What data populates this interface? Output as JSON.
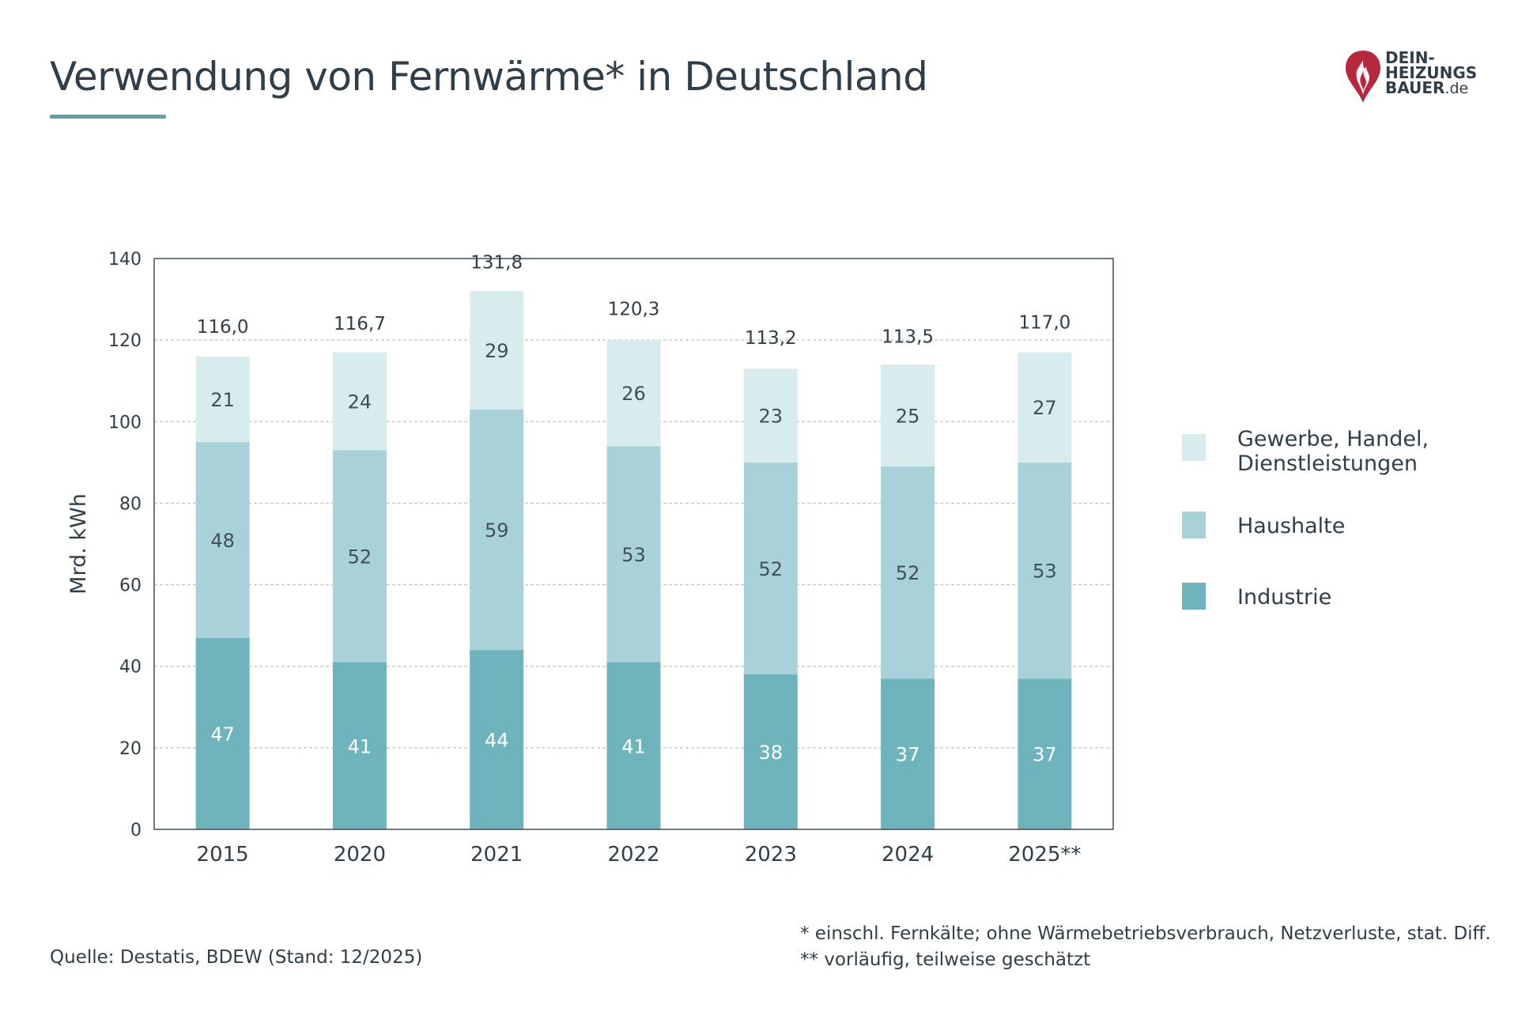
{
  "title": "Verwendung von Fernwärme* in Deutschland",
  "logo": {
    "line1": "DEIN-",
    "line2": "HEIZUNGS",
    "line3": "BAUER",
    "line3_suffix": ".de",
    "color_flame": "#b5283d"
  },
  "chart_data": {
    "type": "bar",
    "stacked": true,
    "categories": [
      "2015",
      "2020",
      "2021",
      "2022",
      "2023",
      "2024",
      "2025**"
    ],
    "series": [
      {
        "name": "Industrie",
        "values": [
          47,
          41,
          44,
          41,
          38,
          37,
          37
        ],
        "color": "#6fb4bd"
      },
      {
        "name": "Haushalte",
        "values": [
          48,
          52,
          59,
          53,
          52,
          52,
          53
        ],
        "color": "#a9d2d8"
      },
      {
        "name": "Gewerbe, Handel, Dienstleistungen",
        "values": [
          21,
          24,
          29,
          26,
          23,
          25,
          27
        ],
        "color": "#d8ebed"
      }
    ],
    "totals": [
      "116,0",
      "116,7",
      "131,8",
      "120,3",
      "113,2",
      "113,5",
      "117,0"
    ],
    "total_values": [
      116.0,
      116.7,
      131.8,
      120.3,
      113.2,
      113.5,
      117.0
    ],
    "ylabel": "Mrd. kWh",
    "ylim": [
      0,
      140
    ],
    "yticks": [
      0,
      20,
      40,
      60,
      80,
      100,
      120,
      140
    ],
    "grid": true,
    "legend_position": "right"
  },
  "legend": {
    "items": [
      {
        "label": "Gewerbe, Handel,\nDienstleistungen",
        "color": "#d8ebed"
      },
      {
        "label": "Haushalte",
        "color": "#a9d2d8"
      },
      {
        "label": "Industrie",
        "color": "#6fb4bd"
      }
    ]
  },
  "source": "Quelle: Destatis, BDEW (Stand: 12/2025)",
  "footnotes": [
    "*  einschl. Fernkälte; ohne Wärmebetriebsverbrauch, Netzverluste, stat. Diff.",
    "** vorläufig, teilweise geschätzt"
  ]
}
